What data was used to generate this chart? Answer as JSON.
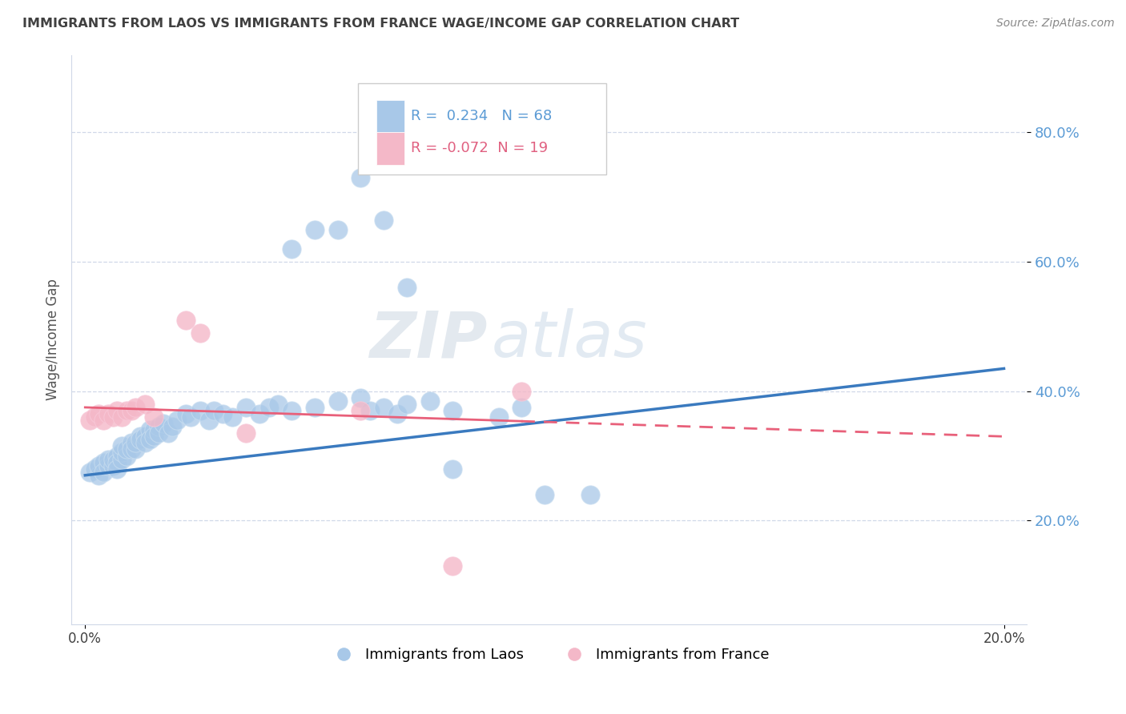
{
  "title": "IMMIGRANTS FROM LAOS VS IMMIGRANTS FROM FRANCE WAGE/INCOME GAP CORRELATION CHART",
  "source": "Source: ZipAtlas.com",
  "ylabel": "Wage/Income Gap",
  "ytick_labels": [
    "80.0%",
    "60.0%",
    "40.0%",
    "20.0%"
  ],
  "ytick_values": [
    0.8,
    0.6,
    0.4,
    0.2
  ],
  "xlim": [
    0.0,
    0.2
  ],
  "ylim": [
    0.05,
    0.9
  ],
  "legend_blue_r": "0.234",
  "legend_blue_n": "68",
  "legend_pink_r": "-0.072",
  "legend_pink_n": "19",
  "legend_label_blue": "Immigrants from Laos",
  "legend_label_pink": "Immigrants from France",
  "blue_color": "#a8c8e8",
  "pink_color": "#f4b8c8",
  "trendline_blue_color": "#3a7abf",
  "trendline_pink_color": "#e8607a",
  "watermark_zip": "ZIP",
  "watermark_atlas": "atlas",
  "background_color": "#ffffff",
  "grid_color": "#d0d8e8",
  "title_color": "#404040",
  "ytick_color": "#5b9bd5",
  "xtick_color": "#404040",
  "blue_x": [
    0.001,
    0.002,
    0.003,
    0.003,
    0.004,
    0.004,
    0.005,
    0.005,
    0.006,
    0.006,
    0.007,
    0.007,
    0.007,
    0.008,
    0.008,
    0.008,
    0.009,
    0.009,
    0.01,
    0.01,
    0.011,
    0.011,
    0.012,
    0.012,
    0.013,
    0.013,
    0.014,
    0.014,
    0.015,
    0.015,
    0.016,
    0.016,
    0.017,
    0.018,
    0.019,
    0.02,
    0.022,
    0.023,
    0.025,
    0.027,
    0.028,
    0.03,
    0.032,
    0.035,
    0.038,
    0.04,
    0.042,
    0.045,
    0.05,
    0.055,
    0.06,
    0.062,
    0.065,
    0.068,
    0.07,
    0.075,
    0.08,
    0.09,
    0.095,
    0.1,
    0.11,
    0.045,
    0.05,
    0.055,
    0.06,
    0.065,
    0.07,
    0.08
  ],
  "blue_y": [
    0.275,
    0.28,
    0.27,
    0.285,
    0.29,
    0.275,
    0.285,
    0.295,
    0.285,
    0.295,
    0.3,
    0.29,
    0.28,
    0.295,
    0.305,
    0.315,
    0.3,
    0.31,
    0.32,
    0.31,
    0.31,
    0.32,
    0.33,
    0.325,
    0.33,
    0.32,
    0.34,
    0.325,
    0.34,
    0.33,
    0.345,
    0.335,
    0.35,
    0.335,
    0.345,
    0.355,
    0.365,
    0.36,
    0.37,
    0.355,
    0.37,
    0.365,
    0.36,
    0.375,
    0.365,
    0.375,
    0.38,
    0.37,
    0.375,
    0.385,
    0.39,
    0.37,
    0.375,
    0.365,
    0.38,
    0.385,
    0.37,
    0.36,
    0.375,
    0.24,
    0.24,
    0.62,
    0.65,
    0.65,
    0.73,
    0.665,
    0.56,
    0.28
  ],
  "pink_x": [
    0.001,
    0.002,
    0.003,
    0.004,
    0.005,
    0.006,
    0.007,
    0.008,
    0.009,
    0.01,
    0.011,
    0.013,
    0.015,
    0.022,
    0.025,
    0.035,
    0.06,
    0.08,
    0.095
  ],
  "pink_y": [
    0.355,
    0.36,
    0.365,
    0.355,
    0.365,
    0.36,
    0.37,
    0.36,
    0.37,
    0.37,
    0.375,
    0.38,
    0.36,
    0.51,
    0.49,
    0.335,
    0.37,
    0.13,
    0.4
  ],
  "blue_trend_x0": 0.0,
  "blue_trend_y0": 0.27,
  "blue_trend_x1": 0.2,
  "blue_trend_y1": 0.435,
  "pink_trend_x0": 0.0,
  "pink_trend_y0": 0.375,
  "pink_trend_x1": 0.2,
  "pink_trend_y1": 0.33
}
